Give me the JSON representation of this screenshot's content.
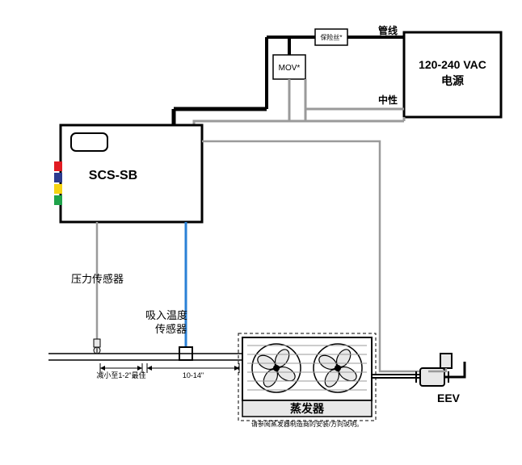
{
  "colors": {
    "bg": "#ffffff",
    "black": "#000000",
    "gray": "#9a9a9a",
    "blue": "#2a80d6",
    "red": "#e11b22",
    "darkblue": "#2b3a8f",
    "yellow": "#f5d312",
    "green": "#1fa34a",
    "fill_light": "#e8e8e8"
  },
  "scs_box": {
    "label": "SCS-SB",
    "font_size": 16,
    "font_weight": "bold"
  },
  "power_box": {
    "line1": "120-240 VAC",
    "line2": "电源",
    "font_size": 14,
    "font_weight": "bold"
  },
  "fuse_box": {
    "label": "保险丝*",
    "font_size": 8
  },
  "mov_box": {
    "label": "MOV*",
    "font_size": 10
  },
  "wire_labels": {
    "line": "管线",
    "neutral": "中性",
    "font_size": 12,
    "font_weight": "bold"
  },
  "pressure_sensor": {
    "label": "压力传感器",
    "font_size": 13
  },
  "temp_sensor": {
    "line1": "吸入温度",
    "line2": "传感器",
    "font_size": 13
  },
  "evaporator": {
    "label": "蒸发器",
    "font_size": 14,
    "note": "请参阅蒸发器制造商的安装/方向说明。",
    "note_font_size": 8
  },
  "eev": {
    "label": "EEV",
    "font_size": 14,
    "font_weight": "bold"
  },
  "dim_labels": {
    "left": "减小至1-2\"最佳",
    "right": "10-14\"",
    "font_size": 9
  }
}
